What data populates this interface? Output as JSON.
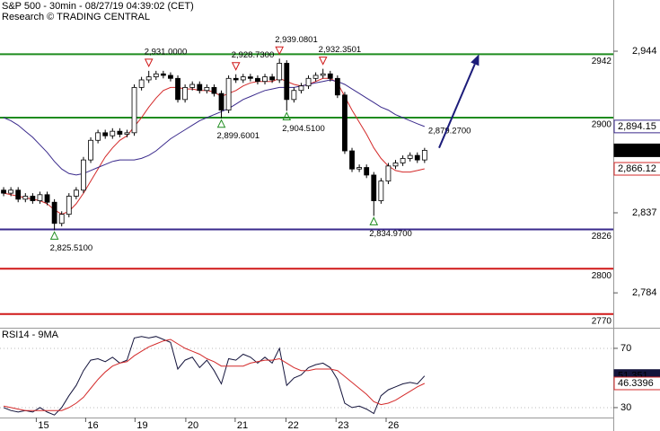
{
  "chart_data": [
    {
      "type": "candlestick",
      "title": "S&P 500 - 30min - 08/27/19 04:39:02 (CET)",
      "subtitle": "Research © TRADING CENTRAL",
      "xlim": [
        -0.5,
        84
      ],
      "ylim": [
        2760.9,
        2977.9
      ],
      "yticks": [
        {
          "value": 2944,
          "label": "2,944"
        },
        {
          "value": 2837,
          "label": "2,837"
        },
        {
          "value": 2784,
          "label": "2,784"
        }
      ],
      "open": [
        2852,
        2850,
        2852,
        2846,
        2848,
        2845,
        2849,
        2844,
        2830,
        2836,
        2848,
        2852,
        2872,
        2885,
        2890,
        2888,
        2891,
        2889,
        2890,
        2920,
        2925,
        2927,
        2929,
        2928,
        2926,
        2912,
        2920,
        2922,
        2918,
        2920,
        2916,
        2905,
        2926,
        2925,
        2927,
        2926,
        2924,
        2927,
        2925,
        2936,
        2912,
        2918,
        2921,
        2926,
        2928,
        2929,
        2926,
        2915,
        2878,
        2866,
        2867,
        2862,
        2845,
        2858,
        2868,
        2870,
        2873,
        2875,
        2872
      ],
      "high": [
        2854,
        2854,
        2854,
        2850,
        2850,
        2851,
        2851,
        2846,
        2838,
        2850,
        2854,
        2874,
        2887,
        2892,
        2892,
        2893,
        2893,
        2892,
        2922,
        2927,
        2931,
        2931,
        2931,
        2930,
        2928,
        2922,
        2924,
        2924,
        2922,
        2922,
        2918,
        2928,
        2928.73,
        2929,
        2929,
        2928,
        2929,
        2929,
        2939.08,
        2938,
        2920,
        2923,
        2928,
        2930,
        2932.35,
        2931,
        2928,
        2917,
        2880,
        2869,
        2869,
        2864,
        2860,
        2870,
        2872,
        2875,
        2877,
        2877,
        2880
      ],
      "low": [
        2848,
        2848,
        2844,
        2844,
        2843,
        2843,
        2842,
        2825.51,
        2828,
        2834,
        2846,
        2850,
        2870,
        2883,
        2886,
        2886,
        2887,
        2887,
        2888,
        2918,
        2923,
        2925,
        2926,
        2924,
        2910,
        2910,
        2918,
        2916,
        2916,
        2914,
        2899.6,
        2903,
        2923,
        2923,
        2924,
        2922,
        2922,
        2923,
        2923,
        2904.51,
        2910,
        2916,
        2919,
        2924,
        2926,
        2924,
        2913,
        2876,
        2864,
        2864,
        2860,
        2834.97,
        2843,
        2856,
        2866,
        2868,
        2871,
        2870,
        2870
      ],
      "close": [
        2850,
        2852,
        2846,
        2848,
        2845,
        2849,
        2844,
        2830,
        2836,
        2848,
        2852,
        2872,
        2885,
        2890,
        2888,
        2891,
        2889,
        2890,
        2920,
        2925,
        2927,
        2929,
        2928,
        2926,
        2912,
        2920,
        2922,
        2918,
        2920,
        2916,
        2905,
        2926,
        2925,
        2927,
        2926,
        2924,
        2927,
        2925,
        2936,
        2912,
        2918,
        2921,
        2926,
        2928,
        2929,
        2926,
        2915,
        2878,
        2866,
        2867,
        2862,
        2845,
        2858,
        2868,
        2870,
        2873,
        2875,
        2872,
        2878.38
      ],
      "candle_color": "#000000",
      "last_label": "2,878.38",
      "lines": [
        {
          "color": "#d42a2a",
          "last_label": "2,866.12",
          "values": [
            2850,
            2849,
            2848,
            2847,
            2846,
            2845,
            2843,
            2839,
            2836,
            2838,
            2843,
            2850,
            2858,
            2866,
            2874,
            2880,
            2885,
            2888,
            2894,
            2900,
            2907,
            2913,
            2918,
            2920,
            2920,
            2919,
            2919,
            2918,
            2918,
            2917,
            2914,
            2916,
            2918,
            2921,
            2923,
            2924,
            2924,
            2924,
            2926,
            2924,
            2922,
            2921,
            2922,
            2924,
            2926,
            2926,
            2923,
            2914,
            2905,
            2897,
            2889,
            2880,
            2873,
            2868,
            2865,
            2864,
            2864,
            2865,
            2866.12
          ]
        },
        {
          "color": "#3a2a8c",
          "last_label": "2,894.15",
          "values": [
            2900,
            2898,
            2895,
            2891,
            2887,
            2882,
            2877,
            2871,
            2866,
            2863,
            2862,
            2863,
            2865,
            2867,
            2869,
            2871,
            2872,
            2872,
            2872,
            2873,
            2875,
            2878,
            2882,
            2886,
            2889,
            2892,
            2895,
            2898,
            2900,
            2902,
            2904,
            2906,
            2909,
            2912,
            2914,
            2916,
            2918,
            2919,
            2920,
            2920,
            2920,
            2921,
            2922,
            2923,
            2924,
            2925,
            2924,
            2922,
            2919,
            2916,
            2913,
            2910,
            2907,
            2905,
            2902,
            2900,
            2898,
            2896,
            2894.15
          ]
        }
      ],
      "levels": [
        {
          "value": 2942,
          "color": "#1f8c1f"
        },
        {
          "value": 2900,
          "color": "#1f8c1f"
        },
        {
          "value": 2826,
          "color": "#3a2a8c"
        },
        {
          "value": 2800,
          "color": "#d01818"
        },
        {
          "value": 2770,
          "color": "#d01818"
        }
      ],
      "annotations": [
        {
          "label": "2,931.0000",
          "value": 2931,
          "x": 20,
          "marker": "high"
        },
        {
          "label": "2,928.7300",
          "value": 2928.73,
          "x": 32,
          "marker": "high"
        },
        {
          "label": "2,939.0801",
          "value": 2939.08,
          "x": 38,
          "marker": "high"
        },
        {
          "label": "2,932.3501",
          "value": 2932.35,
          "x": 44,
          "marker": "high"
        },
        {
          "label": "2,825.5100",
          "value": 2825.51,
          "x": 7,
          "marker": "low"
        },
        {
          "label": "2,899.6001",
          "value": 2899.6,
          "x": 30,
          "marker": "low"
        },
        {
          "label": "2,904.5100",
          "value": 2904.51,
          "x": 39,
          "marker": "low"
        },
        {
          "label": "2,834.9700",
          "value": 2834.97,
          "x": 51,
          "marker": "low"
        },
        {
          "label": "2,879.2700",
          "value": 2879.27,
          "x": 58.5,
          "marker": "none"
        }
      ],
      "arrow": {
        "color": "#1c1c7a",
        "from": [
          60,
          2880
        ],
        "to": [
          65.5,
          2942
        ]
      }
    },
    {
      "type": "line",
      "title": "RSI14 - 9MA",
      "xlim": [
        -0.5,
        84
      ],
      "ylim": [
        23.3,
        83.3
      ],
      "yticks": [
        70,
        30
      ],
      "grid": true,
      "xticks": [
        {
          "value": 4.5,
          "label": "15"
        },
        {
          "value": 11.3,
          "label": "16"
        },
        {
          "value": 18.1,
          "label": "19"
        },
        {
          "value": 25.1,
          "label": "20"
        },
        {
          "value": 31.9,
          "label": "21"
        },
        {
          "value": 38.9,
          "label": "22"
        },
        {
          "value": 45.8,
          "label": "23"
        },
        {
          "value": 52.7,
          "label": "26"
        }
      ],
      "series": [
        {
          "color": "#14143c",
          "last_label": "51.351",
          "tag_filled": true,
          "values": [
            30,
            28,
            27,
            28,
            27,
            30,
            27,
            25,
            30,
            38,
            45,
            55,
            62,
            63,
            61,
            64,
            60,
            62,
            77,
            78,
            77,
            78,
            76,
            74,
            56,
            62,
            64,
            57,
            62,
            55,
            46,
            63,
            62,
            66,
            64,
            60,
            64,
            60,
            70,
            45,
            50,
            52,
            57,
            59,
            60,
            57,
            49,
            33,
            30,
            31,
            29,
            26,
            38,
            42,
            44,
            46,
            47,
            46,
            51.351
          ]
        },
        {
          "color": "#d42a2a",
          "last_label": "46.3396",
          "tag_filled": false,
          "values": [
            31,
            30,
            29,
            28,
            28,
            28,
            28,
            28,
            28,
            30,
            33,
            37,
            43,
            49,
            54,
            58,
            60,
            61,
            65,
            68,
            71,
            73,
            75,
            76,
            73,
            70,
            68,
            66,
            63,
            61,
            58,
            58,
            58,
            58,
            60,
            61,
            62,
            62,
            63,
            60,
            57,
            55,
            55,
            56,
            56,
            56,
            55,
            51,
            47,
            43,
            39,
            34,
            32,
            33,
            35,
            38,
            41,
            44,
            46.3396
          ]
        }
      ]
    }
  ]
}
